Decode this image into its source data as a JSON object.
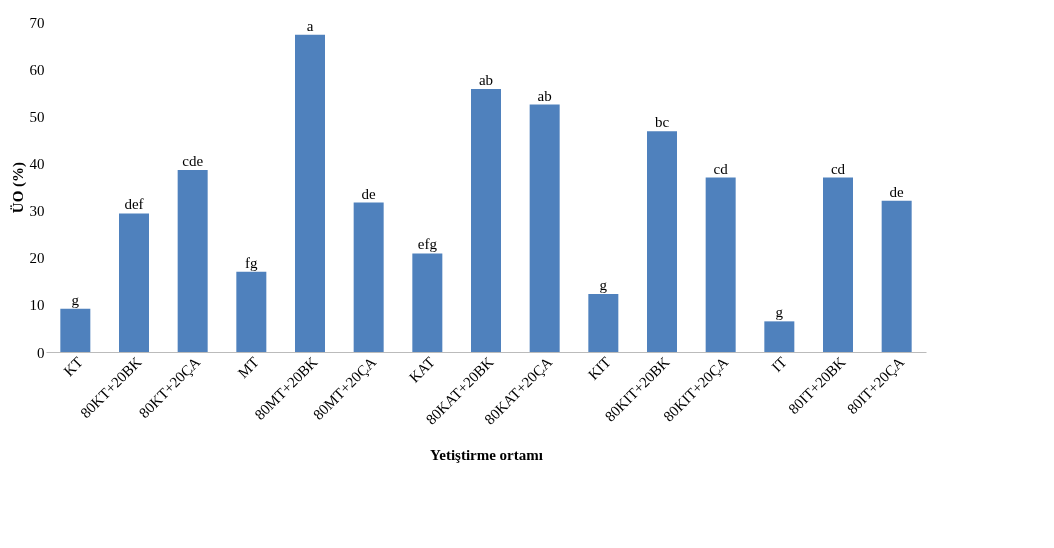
{
  "chart_data": {
    "type": "bar",
    "xlabel": "Yetiştirme ortamı",
    "ylabel": "ÜO (%)",
    "categories": [
      "KT",
      "80KT+20BK",
      "80KT+20ÇA",
      "MT",
      "80MT+20BK",
      "80MT+20ÇA",
      "KAT",
      "80KAT+20BK",
      "80KAT+20ÇA",
      "KIT",
      "80KIT+20BK",
      "80KIT+20ÇA",
      "IT",
      "80IT+20BK",
      "80IT+20ÇA"
    ],
    "values": [
      9.2,
      29.4,
      38.6,
      17,
      67.3,
      31.7,
      20.9,
      55.8,
      52.5,
      12.3,
      46.8,
      37,
      6.5,
      37,
      32.1
    ],
    "value_labels": [
      "g",
      "def",
      "cde",
      "fg",
      "a",
      "de",
      "efg",
      "ab",
      "ab",
      "g",
      "bc",
      "cd",
      "g",
      "cd",
      "de"
    ],
    "color": "#4f81bd",
    "ylim": [
      0,
      70
    ],
    "yticks": [
      0,
      10,
      20,
      30,
      40,
      50,
      60,
      70
    ],
    "grid": false
  }
}
